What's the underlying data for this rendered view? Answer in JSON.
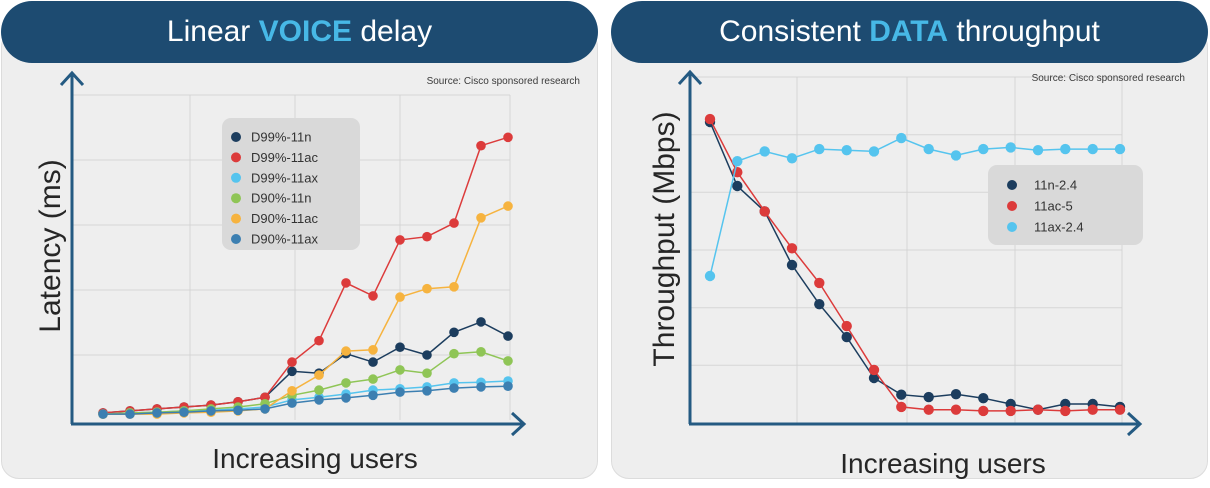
{
  "colors": {
    "header": "#1d4b71",
    "highlight": "#47b8e6",
    "axis": "#245a82"
  },
  "chart_data": [
    {
      "type": "line",
      "title_parts": [
        "Linear",
        "VOICE",
        "delay"
      ],
      "source": "Source: Cisco sponsored research",
      "xlabel": "Increasing users",
      "ylabel": "Latency (ms)",
      "ylim": [
        0,
        5
      ],
      "grid": true,
      "legend": "upper-left",
      "series": [
        {
          "name": "D99%-11n",
          "color": "#1c3d5e",
          "values": [
            0.11,
            0.14,
            0.17,
            0.2,
            0.23,
            0.28,
            0.35,
            0.75,
            0.72,
            1.02,
            0.89,
            1.12,
            1.0,
            1.35,
            1.51,
            1.29
          ]
        },
        {
          "name": "D99%-11ac",
          "color": "#dc3b3b",
          "values": [
            0.11,
            0.14,
            0.17,
            0.2,
            0.23,
            0.28,
            0.35,
            0.89,
            1.22,
            2.11,
            1.91,
            2.77,
            2.82,
            3.03,
            4.22,
            4.35
          ]
        },
        {
          "name": "D99%-11ax",
          "color": "#55c4ee",
          "values": [
            0.09,
            0.11,
            0.12,
            0.14,
            0.15,
            0.17,
            0.2,
            0.31,
            0.35,
            0.4,
            0.46,
            0.48,
            0.51,
            0.57,
            0.58,
            0.6
          ]
        },
        {
          "name": "D90%-11n",
          "color": "#8fc556",
          "values": [
            0.09,
            0.11,
            0.12,
            0.14,
            0.17,
            0.2,
            0.25,
            0.38,
            0.46,
            0.57,
            0.63,
            0.77,
            0.72,
            1.02,
            1.05,
            0.91
          ]
        },
        {
          "name": "D90%-11ac",
          "color": "#f6b33f",
          "values": [
            0.09,
            0.09,
            0.09,
            0.11,
            0.12,
            0.14,
            0.17,
            0.45,
            0.69,
            1.06,
            1.08,
            1.89,
            2.02,
            2.05,
            3.11,
            3.29
          ]
        },
        {
          "name": "D90%-11ax",
          "color": "#3c7fb1",
          "values": [
            0.09,
            0.09,
            0.11,
            0.12,
            0.14,
            0.15,
            0.17,
            0.26,
            0.31,
            0.34,
            0.38,
            0.43,
            0.45,
            0.49,
            0.51,
            0.52
          ]
        }
      ]
    },
    {
      "type": "line",
      "title_parts": [
        "Consistent",
        "DATA",
        "throughput"
      ],
      "source": "Source: Cisco sponsored research",
      "xlabel": "Increasing users",
      "ylabel": "Throughput (Mbps)",
      "ylim": [
        0,
        6
      ],
      "grid": true,
      "legend": "upper-right",
      "series": [
        {
          "name": "11n-2.4",
          "color": "#1c3d5e",
          "values": [
            5.22,
            4.11,
            3.67,
            2.74,
            2.06,
            1.49,
            0.78,
            0.49,
            0.45,
            0.5,
            0.43,
            0.33,
            0.23,
            0.33,
            0.33,
            0.28
          ]
        },
        {
          "name": "11ac-5",
          "color": "#dc3b3b",
          "values": [
            5.27,
            4.35,
            3.67,
            3.03,
            2.43,
            1.68,
            0.92,
            0.28,
            0.23,
            0.23,
            0.21,
            0.21,
            0.23,
            0.21,
            0.23,
            0.23
          ]
        },
        {
          "name": "11ax-2.4",
          "color": "#55c4ee",
          "values": [
            2.55,
            4.54,
            4.71,
            4.59,
            4.75,
            4.73,
            4.71,
            4.94,
            4.75,
            4.64,
            4.75,
            4.78,
            4.73,
            4.75,
            4.75,
            4.75
          ]
        }
      ]
    }
  ]
}
